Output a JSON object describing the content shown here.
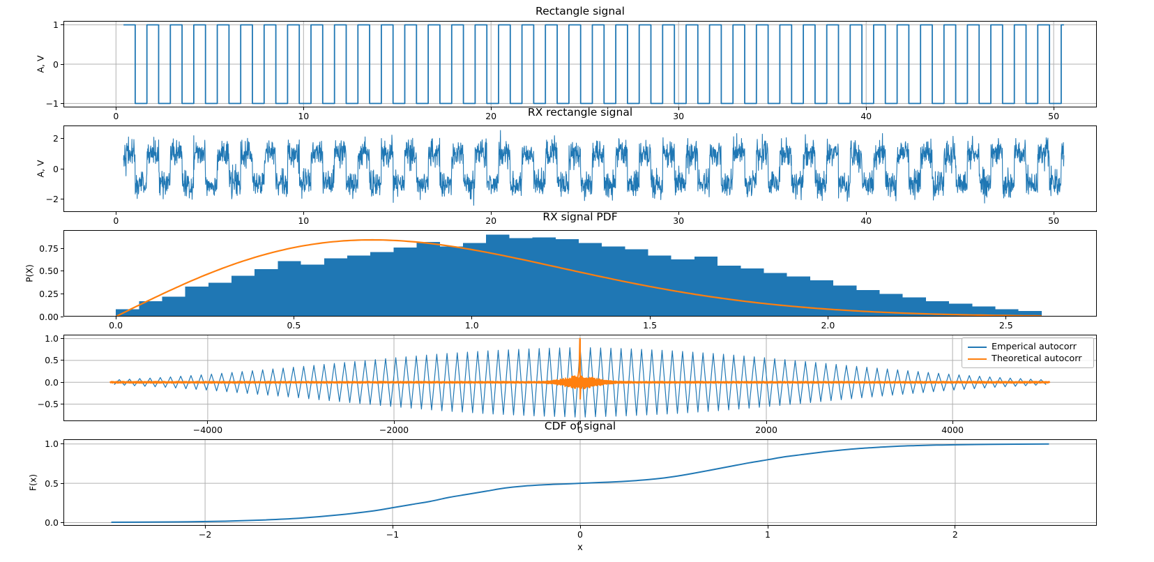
{
  "figure": {
    "background": "#ffffff",
    "colors": {
      "blue": "#1f77b4",
      "orange": "#ff7f0e",
      "grid": "#b0b0b0",
      "spine": "#000000",
      "text": "#000000"
    }
  },
  "chart_data": [
    {
      "name": "rectangle-signal",
      "type": "line",
      "title": "Rectangle signal",
      "ylabel": "A, V",
      "xlim": [
        -2.8,
        52.3
      ],
      "ylim": [
        -1.1,
        1.1
      ],
      "grid": true,
      "xticks": [
        [
          0,
          "0"
        ],
        [
          10,
          "10"
        ],
        [
          20,
          "20"
        ],
        [
          30,
          "30"
        ],
        [
          40,
          "40"
        ],
        [
          50,
          "50"
        ]
      ],
      "yticks": [
        [
          -1,
          "−1"
        ],
        [
          0,
          "0"
        ],
        [
          1,
          "1"
        ]
      ],
      "series": [
        {
          "name": "rect-wave",
          "kind": "square",
          "color": "#1f77b4",
          "t_start": 0.4,
          "t_end": 50.55,
          "period": 1.25,
          "amplitude": 1,
          "line_width": 1.8
        }
      ]
    },
    {
      "name": "rx-rectangle-signal",
      "type": "line",
      "title": "RX rectangle signal",
      "ylabel": "A, V",
      "xlim": [
        -2.8,
        52.3
      ],
      "ylim": [
        -2.85,
        2.85
      ],
      "grid": false,
      "xticks": [
        [
          0,
          "0"
        ],
        [
          10,
          "10"
        ],
        [
          20,
          "20"
        ],
        [
          30,
          "30"
        ],
        [
          40,
          "40"
        ],
        [
          50,
          "50"
        ]
      ],
      "yticks": [
        [
          -2,
          "−2"
        ],
        [
          0,
          "0"
        ],
        [
          2,
          "2"
        ]
      ],
      "series": [
        {
          "name": "rx-wave",
          "kind": "noisy_square",
          "color": "#1f77b4",
          "t_start": 0.4,
          "t_end": 50.55,
          "period": 1.25,
          "amplitude": 1,
          "noise_sigma": 0.45,
          "dt": 0.015,
          "seed": 42,
          "line_width": 1.1
        }
      ]
    },
    {
      "name": "rx-signal-pdf",
      "type": "histogram",
      "title": "RX signal PDF",
      "ylabel": "P(X)",
      "xlim": [
        -0.147,
        2.755
      ],
      "ylim": [
        0,
        0.95
      ],
      "grid": false,
      "xticks": [
        [
          0,
          "0.0"
        ],
        [
          0.5,
          "0.5"
        ],
        [
          1,
          "1.0"
        ],
        [
          1.5,
          "1.5"
        ],
        [
          2,
          "2.0"
        ],
        [
          2.5,
          "2.5"
        ]
      ],
      "yticks": [
        [
          0,
          "0.00"
        ],
        [
          0.25,
          "0.25"
        ],
        [
          0.5,
          "0.50"
        ],
        [
          0.75,
          "0.75"
        ]
      ],
      "hist": {
        "name": "pdf-histogram",
        "color": "#1f77b4",
        "bin_start": 0,
        "bin_width": 0.065,
        "values": [
          0.08,
          0.17,
          0.22,
          0.33,
          0.37,
          0.45,
          0.52,
          0.61,
          0.57,
          0.64,
          0.67,
          0.71,
          0.76,
          0.82,
          0.77,
          0.81,
          0.9,
          0.86,
          0.87,
          0.85,
          0.81,
          0.77,
          0.74,
          0.67,
          0.63,
          0.66,
          0.56,
          0.53,
          0.48,
          0.44,
          0.4,
          0.34,
          0.29,
          0.25,
          0.21,
          0.17,
          0.14,
          0.11,
          0.08,
          0.06
        ]
      },
      "series": [
        {
          "name": "rayleigh-fit",
          "kind": "rayleigh",
          "color": "#ff7f0e",
          "sigma": 0.72,
          "x_max": 2.6,
          "line_width": 2.2
        }
      ]
    },
    {
      "name": "autocorrelation",
      "type": "line",
      "title": "",
      "ylabel": "",
      "xlim": [
        -5550,
        5550
      ],
      "ylim": [
        -0.89,
        1.09
      ],
      "grid": true,
      "xticks": [
        [
          -4000,
          "−4000"
        ],
        [
          -2000,
          "−2000"
        ],
        [
          0,
          "0"
        ],
        [
          2000,
          "2000"
        ],
        [
          4000,
          "4000"
        ]
      ],
      "yticks": [
        [
          -0.5,
          "−0.5"
        ],
        [
          0,
          "0.0"
        ],
        [
          0.5,
          "0.5"
        ],
        [
          1,
          "1.0"
        ]
      ],
      "series": [
        {
          "name": "emperical-autocorr",
          "kind": "triangle_burst",
          "color": "#1f77b4",
          "period": 110,
          "lag_max": 5050,
          "line_width": 1.2,
          "envelope": [
            [
              0,
              0.8
            ],
            [
              500,
              0.77
            ],
            [
              1000,
              0.72
            ],
            [
              1500,
              0.65
            ],
            [
              2000,
              0.56
            ],
            [
              2500,
              0.46
            ],
            [
              3000,
              0.36
            ],
            [
              3500,
              0.27
            ],
            [
              4000,
              0.18
            ],
            [
              4500,
              0.11
            ],
            [
              5050,
              0.05
            ]
          ]
        },
        {
          "name": "theoretical-autocorr",
          "kind": "noise_band",
          "color": "#ff7f0e",
          "lag_max": 5050,
          "base": 0.022,
          "bump": 0.135,
          "bump_width": 230,
          "seed": 3,
          "line_width": 1.6,
          "spike": [
            [
              -70,
              0.05
            ],
            [
              -25,
              0.12
            ],
            [
              -10,
              0.3
            ],
            [
              -3,
              1.0
            ],
            [
              0,
              1.0
            ],
            [
              1,
              -0.38
            ],
            [
              6,
              -0.1
            ],
            [
              14,
              0.14
            ],
            [
              32,
              0.09
            ],
            [
              70,
              0.05
            ]
          ]
        }
      ],
      "legend": {
        "entries": [
          {
            "label": "Emperical autocorr",
            "color": "#1f77b4"
          },
          {
            "label": "Theoretical autocorr",
            "color": "#ff7f0e"
          }
        ]
      }
    },
    {
      "name": "cdf-of-signal",
      "type": "line",
      "title": "CDF of signal",
      "ylabel": "F(x)",
      "xlabel": "x",
      "xlim": [
        -2.755,
        2.755
      ],
      "ylim": [
        -0.04,
        1.06
      ],
      "grid": true,
      "xticks": [
        [
          -2,
          "−2"
        ],
        [
          -1,
          "−1"
        ],
        [
          0,
          "0"
        ],
        [
          1,
          "1"
        ],
        [
          2,
          "2"
        ]
      ],
      "yticks": [
        [
          0,
          "0.0"
        ],
        [
          0.5,
          "0.5"
        ],
        [
          1,
          "1.0"
        ]
      ],
      "series": [
        {
          "name": "cdf-curve",
          "kind": "points",
          "color": "#1f77b4",
          "line_width": 2,
          "points": [
            [
              -2.5,
              0.004
            ],
            [
              -2.3,
              0.006
            ],
            [
              -2.1,
              0.01
            ],
            [
              -1.9,
              0.018
            ],
            [
              -1.7,
              0.032
            ],
            [
              -1.5,
              0.055
            ],
            [
              -1.3,
              0.095
            ],
            [
              -1.1,
              0.15
            ],
            [
              -1.0,
              0.19
            ],
            [
              -0.9,
              0.23
            ],
            [
              -0.8,
              0.27
            ],
            [
              -0.7,
              0.32
            ],
            [
              -0.6,
              0.36
            ],
            [
              -0.5,
              0.4
            ],
            [
              -0.4,
              0.44
            ],
            [
              -0.3,
              0.465
            ],
            [
              -0.2,
              0.48
            ],
            [
              -0.1,
              0.49
            ],
            [
              0,
              0.5
            ],
            [
              0.1,
              0.51
            ],
            [
              0.2,
              0.52
            ],
            [
              0.3,
              0.535
            ],
            [
              0.4,
              0.555
            ],
            [
              0.5,
              0.585
            ],
            [
              0.6,
              0.625
            ],
            [
              0.7,
              0.67
            ],
            [
              0.8,
              0.715
            ],
            [
              0.9,
              0.76
            ],
            [
              1.0,
              0.8
            ],
            [
              1.1,
              0.84
            ],
            [
              1.2,
              0.87
            ],
            [
              1.3,
              0.9
            ],
            [
              1.4,
              0.925
            ],
            [
              1.5,
              0.945
            ],
            [
              1.6,
              0.96
            ],
            [
              1.7,
              0.972
            ],
            [
              1.8,
              0.98
            ],
            [
              1.9,
              0.986
            ],
            [
              2.0,
              0.99
            ],
            [
              2.2,
              0.996
            ],
            [
              2.5,
              1.0
            ]
          ]
        }
      ]
    }
  ]
}
